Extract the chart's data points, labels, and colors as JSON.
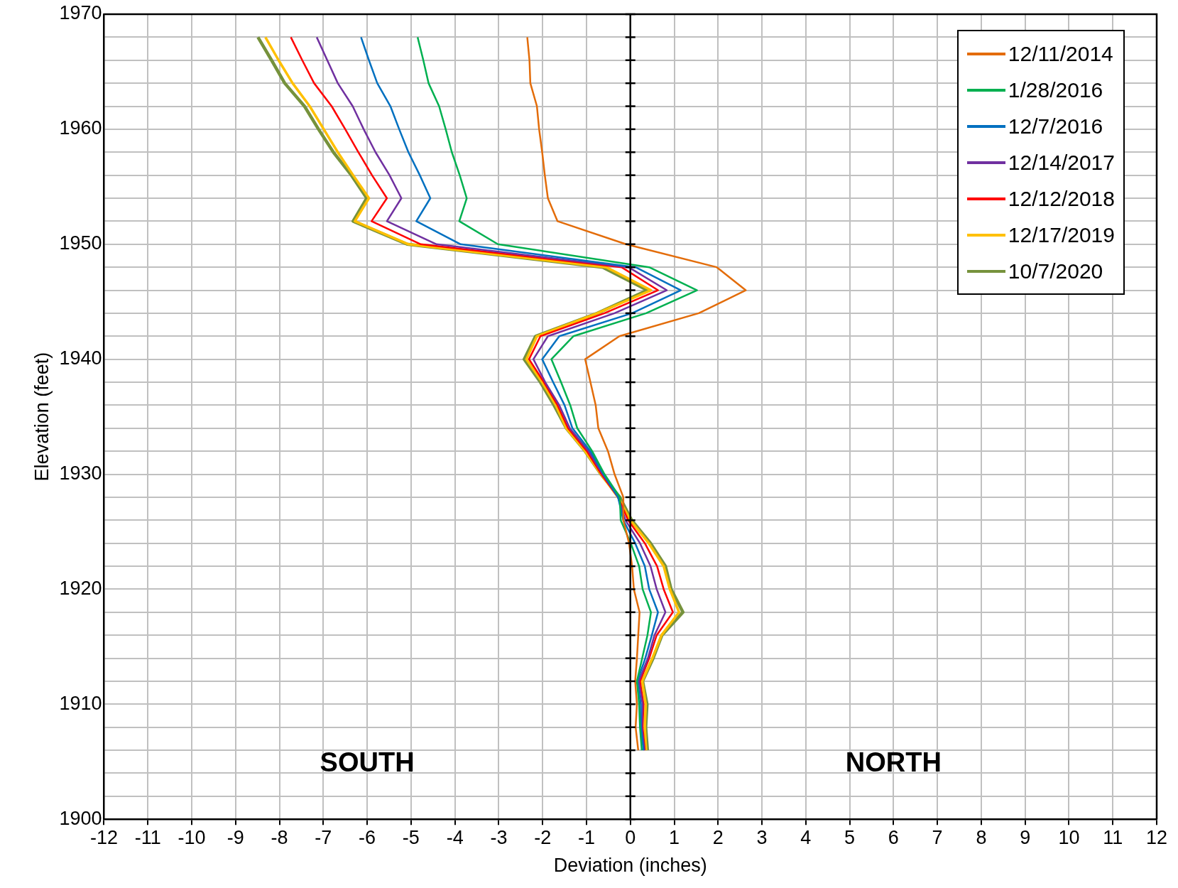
{
  "chart_data": {
    "type": "line",
    "xlabel": "Deviation (inches)",
    "ylabel": "Elevation (feet)",
    "xlim": [
      -12,
      12
    ],
    "xticks": [
      -12,
      -11,
      -10,
      -9,
      -8,
      -7,
      -6,
      -5,
      -4,
      -3,
      -2,
      -1,
      0,
      1,
      2,
      3,
      4,
      5,
      6,
      7,
      8,
      9,
      10,
      11,
      12
    ],
    "ylim": [
      1900,
      1970
    ],
    "yticks": [
      1900,
      {
        "value": 1902,
        "label": null
      },
      {
        "value": 1904,
        "label": null
      },
      {
        "value": 1906,
        "label": null
      },
      {
        "value": 1908,
        "label": null
      },
      1910,
      {
        "value": 1912,
        "label": null
      },
      {
        "value": 1914,
        "label": null
      },
      {
        "value": 1916,
        "label": null
      },
      {
        "value": 1918,
        "label": null
      },
      1920,
      {
        "value": 1922,
        "label": null
      },
      {
        "value": 1924,
        "label": null
      },
      {
        "value": 1926,
        "label": null
      },
      {
        "value": 1928,
        "label": null
      },
      1930,
      {
        "value": 1932,
        "label": null
      },
      {
        "value": 1934,
        "label": null
      },
      {
        "value": 1936,
        "label": null
      },
      {
        "value": 1938,
        "label": null
      },
      1940,
      {
        "value": 1942,
        "label": null
      },
      {
        "value": 1944,
        "label": null
      },
      {
        "value": 1946,
        "label": null
      },
      {
        "value": 1948,
        "label": null
      },
      1950,
      {
        "value": 1952,
        "label": null
      },
      {
        "value": 1954,
        "label": null
      },
      {
        "value": 1956,
        "label": null
      },
      {
        "value": 1958,
        "label": null
      },
      1960,
      {
        "value": 1962,
        "label": null
      },
      {
        "value": 1964,
        "label": null
      },
      {
        "value": 1966,
        "label": null
      },
      {
        "value": 1968,
        "label": null
      },
      1970
    ],
    "grid": true,
    "legend": "top right",
    "marker": "none",
    "line_style": "solid",
    "ref_lines": [
      {
        "axis": "x",
        "value": 0,
        "color": "#000000"
      }
    ],
    "annotations": [
      "SOUTH",
      "NORTH"
    ],
    "series": [
      {
        "name": "12/11/2014",
        "color": "#e36c09",
        "x": [
          -2.35,
          -2.3,
          -2.28,
          -2.13,
          -2.08,
          -2.01,
          -1.95,
          -1.88,
          -1.66,
          -0.1,
          1.97,
          2.63,
          1.56,
          -0.25,
          -1.03,
          -0.91,
          -0.79,
          -0.73,
          -0.51,
          -0.36,
          -0.16,
          -0.16,
          -0.03,
          0.04,
          0.08,
          0.21,
          0.18,
          0.15,
          0.11,
          0.15,
          0.12,
          0.18
        ],
        "values": [
          1968,
          1966,
          1964,
          1962,
          1960,
          1958,
          1956,
          1954,
          1952,
          1950,
          1948,
          1946,
          1944,
          1942,
          1940,
          1938,
          1936,
          1934,
          1932,
          1930,
          1928,
          1926,
          1924,
          1922,
          1920,
          1918,
          1916,
          1914,
          1912,
          1910,
          1908,
          1906
        ]
      },
      {
        "name": "1/28/2016",
        "color": "#00b050",
        "x": [
          -4.85,
          -4.72,
          -4.6,
          -4.36,
          -4.21,
          -4.07,
          -3.89,
          -3.73,
          -3.9,
          -3.02,
          0.43,
          1.52,
          0.36,
          -1.3,
          -1.8,
          -1.58,
          -1.37,
          -1.21,
          -0.87,
          -0.59,
          -0.24,
          -0.22,
          0.01,
          0.2,
          0.28,
          0.47,
          0.39,
          0.27,
          0.15,
          0.2,
          0.22,
          0.26
        ],
        "values": [
          1968,
          1966,
          1964,
          1962,
          1960,
          1958,
          1956,
          1954,
          1952,
          1950,
          1948,
          1946,
          1944,
          1942,
          1940,
          1938,
          1936,
          1934,
          1932,
          1930,
          1928,
          1926,
          1924,
          1922,
          1920,
          1918,
          1916,
          1914,
          1912,
          1910,
          1908,
          1906
        ]
      },
      {
        "name": "12/7/2016",
        "color": "#0070c0",
        "x": [
          -6.14,
          -5.96,
          -5.77,
          -5.47,
          -5.27,
          -5.06,
          -4.8,
          -4.56,
          -4.88,
          -3.87,
          0.12,
          1.15,
          0.04,
          -1.62,
          -2.01,
          -1.76,
          -1.5,
          -1.32,
          -0.91,
          -0.61,
          -0.28,
          -0.16,
          0.11,
          0.33,
          0.43,
          0.63,
          0.49,
          0.34,
          0.16,
          0.24,
          0.24,
          0.3
        ],
        "values": [
          1968,
          1966,
          1964,
          1962,
          1960,
          1958,
          1956,
          1954,
          1952,
          1950,
          1948,
          1946,
          1944,
          1942,
          1940,
          1938,
          1936,
          1934,
          1932,
          1930,
          1928,
          1926,
          1924,
          1922,
          1920,
          1918,
          1916,
          1914,
          1912,
          1910,
          1908,
          1906
        ]
      },
      {
        "name": "12/14/2017",
        "color": "#7030a0",
        "x": [
          -7.15,
          -6.91,
          -6.67,
          -6.33,
          -6.08,
          -5.81,
          -5.49,
          -5.22,
          -5.55,
          -4.42,
          -0.04,
          0.83,
          -0.36,
          -1.88,
          -2.21,
          -1.94,
          -1.62,
          -1.38,
          -0.95,
          -0.63,
          -0.28,
          -0.11,
          0.22,
          0.46,
          0.6,
          0.8,
          0.55,
          0.4,
          0.19,
          0.28,
          0.26,
          0.32
        ],
        "values": [
          1968,
          1966,
          1964,
          1962,
          1960,
          1958,
          1956,
          1954,
          1952,
          1950,
          1948,
          1946,
          1944,
          1942,
          1940,
          1938,
          1936,
          1934,
          1932,
          1930,
          1928,
          1926,
          1924,
          1922,
          1920,
          1918,
          1916,
          1914,
          1912,
          1910,
          1908,
          1906
        ]
      },
      {
        "name": "12/12/2018",
        "color": "#ff0000",
        "x": [
          -7.74,
          -7.48,
          -7.21,
          -6.81,
          -6.5,
          -6.2,
          -5.89,
          -5.55,
          -5.9,
          -4.78,
          -0.2,
          0.63,
          -0.59,
          -2.05,
          -2.31,
          -1.97,
          -1.66,
          -1.42,
          -0.99,
          -0.66,
          -0.28,
          -0.05,
          0.33,
          0.61,
          0.76,
          0.97,
          0.6,
          0.43,
          0.22,
          0.3,
          0.28,
          0.33
        ],
        "values": [
          1968,
          1966,
          1964,
          1962,
          1960,
          1958,
          1956,
          1954,
          1952,
          1950,
          1948,
          1946,
          1944,
          1942,
          1940,
          1938,
          1936,
          1934,
          1932,
          1930,
          1928,
          1926,
          1924,
          1922,
          1920,
          1918,
          1916,
          1914,
          1912,
          1910,
          1908,
          1906
        ]
      },
      {
        "name": "12/17/2019",
        "color": "#ffc000",
        "x": [
          -8.32,
          -8.02,
          -7.7,
          -7.31,
          -6.99,
          -6.67,
          -6.32,
          -5.96,
          -6.28,
          -5.06,
          -0.55,
          0.47,
          -0.75,
          -2.13,
          -2.37,
          -2.01,
          -1.7,
          -1.46,
          -1.03,
          -0.67,
          -0.28,
          0,
          0.42,
          0.76,
          0.9,
          1.11,
          0.71,
          0.5,
          0.27,
          0.35,
          0.33,
          0.36
        ],
        "values": [
          1968,
          1966,
          1964,
          1962,
          1960,
          1958,
          1956,
          1954,
          1952,
          1950,
          1948,
          1946,
          1944,
          1942,
          1940,
          1938,
          1936,
          1934,
          1932,
          1930,
          1928,
          1926,
          1924,
          1922,
          1920,
          1918,
          1916,
          1914,
          1912,
          1910,
          1908,
          1906
        ]
      },
      {
        "name": "10/7/2020",
        "color": "#76923c",
        "x": [
          -8.49,
          -8.18,
          -7.88,
          -7.43,
          -7.11,
          -6.77,
          -6.36,
          -6.01,
          -6.32,
          -5.09,
          -0.63,
          0.39,
          -0.75,
          -2.16,
          -2.42,
          -2.05,
          -1.74,
          -1.46,
          -1.03,
          -0.67,
          -0.24,
          0.03,
          0.46,
          0.8,
          0.93,
          1.2,
          0.72,
          0.52,
          0.28,
          0.38,
          0.35,
          0.39
        ],
        "values": [
          1968,
          1966,
          1964,
          1962,
          1960,
          1958,
          1956,
          1954,
          1952,
          1950,
          1948,
          1946,
          1944,
          1942,
          1940,
          1938,
          1936,
          1934,
          1932,
          1930,
          1928,
          1926,
          1924,
          1922,
          1920,
          1918,
          1916,
          1914,
          1912,
          1910,
          1908,
          1906
        ]
      }
    ]
  }
}
